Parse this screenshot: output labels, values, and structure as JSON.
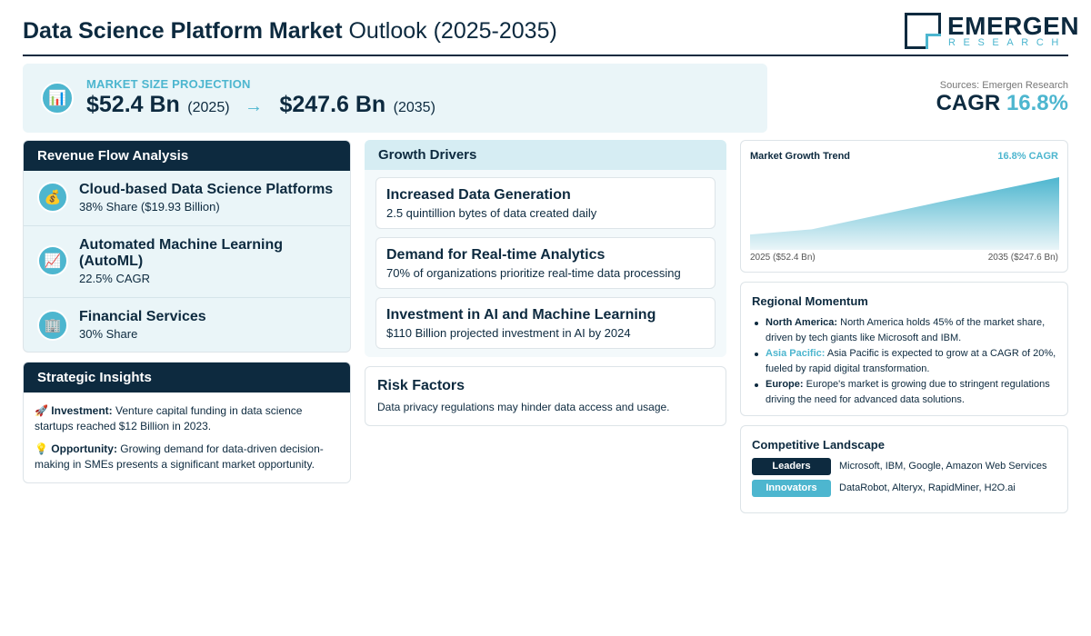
{
  "header": {
    "title_bold": "Data Science Platform Market",
    "title_rest": "Outlook (2025-2035)",
    "logo_word": "EMERGEN",
    "logo_sub": "RESEARCH"
  },
  "market_size": {
    "label": "MARKET SIZE PROJECTION",
    "start_value": "$52.4 Bn",
    "start_year": "(2025)",
    "arrow": "→",
    "end_value": "$247.6 Bn",
    "end_year": "(2035)",
    "icon": "bar-chart-icon"
  },
  "sources": "Sources: Emergen Research",
  "cagr": {
    "label": "CAGR",
    "value": "16.8%"
  },
  "revenue_flow": {
    "title": "Revenue Flow Analysis",
    "items": [
      {
        "icon": "money-bag-icon",
        "glyph": "💰",
        "title": "Cloud-based Data Science Platforms",
        "sub": "38% Share ($19.93 Billion)"
      },
      {
        "icon": "trend-chart-icon",
        "glyph": "📈",
        "title": "Automated Machine Learning (AutoML)",
        "sub": "22.5% CAGR"
      },
      {
        "icon": "office-building-icon",
        "glyph": "🏢",
        "title": "Financial Services",
        "sub": "30% Share"
      }
    ]
  },
  "strategic_insights": {
    "title": "Strategic Insights",
    "items": [
      {
        "icon": "rocket-icon",
        "glyph": "🚀",
        "label": "Investment:",
        "text": "Venture capital funding in data science startups reached $12 Billion in 2023."
      },
      {
        "icon": "lightbulb-icon",
        "glyph": "💡",
        "label": "Opportunity:",
        "text": "Growing demand for data-driven decision-making in SMEs presents a significant market opportunity."
      }
    ]
  },
  "growth_drivers": {
    "title": "Growth Drivers",
    "items": [
      {
        "title": "Increased Data Generation",
        "sub": "2.5 quintillion bytes of data created daily"
      },
      {
        "title": "Demand for Real-time Analytics",
        "sub": "70% of organizations prioritize real-time data processing"
      },
      {
        "title": "Investment in AI and Machine Learning",
        "sub": "$110 Billion projected investment in AI by 2024"
      }
    ]
  },
  "risk": {
    "title": "Risk Factors",
    "sub": "Data privacy regulations may hinder data access and usage."
  },
  "trend": {
    "title": "Market Growth Trend",
    "cagr": "16.8% CAGR",
    "start_label": "2025 ($52.4 Bn)",
    "end_label": "2035 ($247.6 Bn)"
  },
  "chart_data": {
    "type": "area",
    "x": [
      2025,
      2027,
      2031,
      2035
    ],
    "values": [
      52.4,
      70,
      160,
      247.6
    ],
    "grid": false,
    "colors": {
      "fill_top": "#4db6cf",
      "fill_bottom": "#eaf5f8"
    }
  },
  "regional": {
    "title": "Regional Momentum",
    "items": [
      {
        "name": "North America:",
        "accent": false,
        "text": "North America holds 45% of the market share, driven by tech giants like Microsoft and IBM."
      },
      {
        "name": "Asia Pacific:",
        "accent": true,
        "text": "Asia Pacific is expected to grow at a CAGR of 20%, fueled by rapid digital transformation."
      },
      {
        "name": "Europe:",
        "accent": false,
        "text": "Europe's market is growing due to stringent regulations driving the need for advanced data solutions."
      }
    ]
  },
  "competitive": {
    "title": "Competitive Landscape",
    "leaders_label": "Leaders",
    "leaders": "Microsoft, IBM, Google, Amazon Web Services",
    "innovators_label": "Innovators",
    "innovators": "DataRobot, Alteryx, RapidMiner, H2O.ai"
  },
  "colors": {
    "navy": "#0d2a3f",
    "accent": "#4db6cf",
    "panel": "#eaf5f8"
  }
}
